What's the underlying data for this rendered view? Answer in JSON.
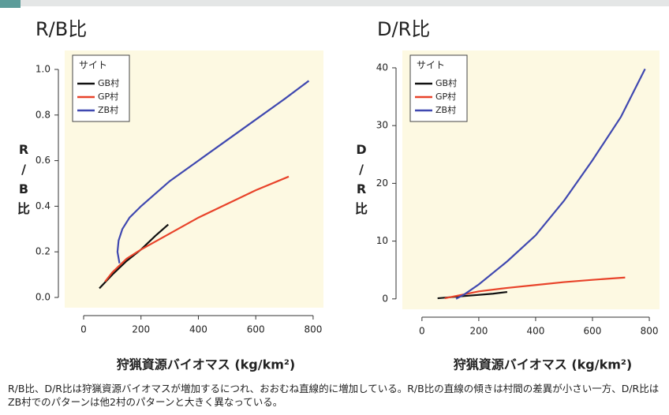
{
  "chart_data": [
    {
      "type": "line",
      "title": "R/B比",
      "ylabel": "R/B比",
      "xlabel": "狩猟資源バイオマス (kg/km²)",
      "legend_title": "サイト",
      "legend": "upper left",
      "xlim": [
        -66,
        836
      ],
      "xticks": [
        0,
        200,
        400,
        600,
        800
      ],
      "ylim": [
        -0.045,
        1.083
      ],
      "yticks": [
        {
          "value": 0,
          "label": "0.0"
        },
        0.2,
        0.4,
        0.6,
        0.8,
        {
          "value": 1,
          "label": "1.0"
        }
      ],
      "series": [
        {
          "name": "GB村",
          "color": "#111111",
          "x": [
            55,
            100,
            150,
            200,
            250,
            295
          ],
          "values": [
            0.04,
            0.1,
            0.16,
            0.21,
            0.27,
            0.32
          ]
        },
        {
          "name": "GP村",
          "color": "#e8432a",
          "x": [
            75,
            100,
            150,
            200,
            300,
            400,
            500,
            600,
            715
          ],
          "values": [
            0.07,
            0.11,
            0.17,
            0.21,
            0.28,
            0.35,
            0.41,
            0.47,
            0.53
          ]
        },
        {
          "name": "ZB村",
          "color": "#3f48b0",
          "x": [
            125,
            118,
            122,
            135,
            160,
            200,
            300,
            400,
            500,
            600,
            700,
            785
          ],
          "values": [
            0.15,
            0.2,
            0.25,
            0.3,
            0.35,
            0.4,
            0.51,
            0.6,
            0.69,
            0.78,
            0.87,
            0.95
          ]
        }
      ]
    },
    {
      "type": "line",
      "title": "D/R比",
      "ylabel": "D/R比",
      "xlabel": "狩猟資源バイオマス (kg/km²)",
      "legend_title": "サイト",
      "legend": "upper left",
      "xlim": [
        -69,
        836
      ],
      "xticks": [
        0,
        200,
        400,
        600,
        800
      ],
      "ylim": [
        -1.8,
        43
      ],
      "yticks": [
        0,
        10,
        20,
        30,
        40
      ],
      "series": [
        {
          "name": "GB村",
          "color": "#111111",
          "x": [
            55,
            150,
            250,
            300
          ],
          "values": [
            0.1,
            0.5,
            0.9,
            1.2
          ]
        },
        {
          "name": "GP村",
          "color": "#e8432a",
          "x": [
            80,
            150,
            200,
            300,
            400,
            500,
            600,
            715
          ],
          "values": [
            0.1,
            0.8,
            1.3,
            1.9,
            2.4,
            2.9,
            3.3,
            3.7
          ]
        },
        {
          "name": "ZB村",
          "color": "#3f48b0",
          "x": [
            120,
            150,
            200,
            300,
            400,
            500,
            600,
            700,
            785
          ],
          "values": [
            0,
            0.8,
            2.5,
            6.5,
            11,
            17,
            24,
            31.5,
            39.8
          ]
        }
      ]
    }
  ],
  "caption": "R/B比、D/R比は狩猟資源バイオマスが増加するにつれ、おおむね直線的に増加している。R/B比の直線の傾きは村間の差異が小さい一方、D/R比はZB村でのパターンは他2村のパターンと大きく異なっている。"
}
